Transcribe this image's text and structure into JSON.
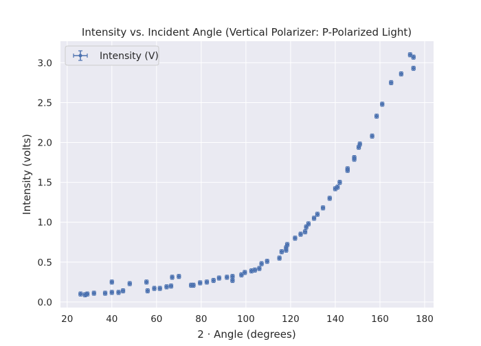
{
  "chart_data": {
    "type": "scatter",
    "title": "Intensity vs. Incident Angle (Vertical Polarizer: P-Polarized Light)",
    "xlabel": "2 · Angle (degrees)",
    "ylabel": "Intensity (volts)",
    "xlim": [
      17,
      184
    ],
    "ylim": [
      -0.07,
      3.27
    ],
    "xticks": [
      20,
      40,
      60,
      80,
      100,
      120,
      140,
      160,
      180
    ],
    "yticks": [
      0.0,
      0.5,
      1.0,
      1.5,
      2.0,
      2.5,
      3.0
    ],
    "xtick_labels": [
      "20",
      "40",
      "60",
      "80",
      "100",
      "120",
      "140",
      "160",
      "180"
    ],
    "ytick_labels": [
      "0.0",
      "0.5",
      "1.0",
      "1.5",
      "2.0",
      "2.5",
      "3.0"
    ],
    "grid": true,
    "legend_position": "top-left",
    "colors": {
      "background": "#eaeaf2",
      "grid": "#ffffff",
      "series": "#4c72b0",
      "text": "#262626"
    },
    "series": [
      {
        "name": "Intensity (V)",
        "marker": "errorbar",
        "x_error": 0.5,
        "y_error": 0.02,
        "points": [
          [
            26,
            0.1
          ],
          [
            28,
            0.09
          ],
          [
            29,
            0.1
          ],
          [
            32,
            0.11
          ],
          [
            37,
            0.11
          ],
          [
            40,
            0.12
          ],
          [
            40,
            0.25
          ],
          [
            43,
            0.12
          ],
          [
            45,
            0.14
          ],
          [
            48,
            0.23
          ],
          [
            55.5,
            0.25
          ],
          [
            56,
            0.14
          ],
          [
            59,
            0.17
          ],
          [
            61.5,
            0.17
          ],
          [
            64.5,
            0.19
          ],
          [
            66.5,
            0.2
          ],
          [
            67,
            0.31
          ],
          [
            70,
            0.32
          ],
          [
            75.5,
            0.21
          ],
          [
            76.5,
            0.21
          ],
          [
            79.5,
            0.24
          ],
          [
            82.5,
            0.25
          ],
          [
            85.5,
            0.27
          ],
          [
            88,
            0.3
          ],
          [
            91.5,
            0.31
          ],
          [
            94,
            0.27
          ],
          [
            94,
            0.32
          ],
          [
            98,
            0.34
          ],
          [
            99.5,
            0.37
          ],
          [
            102.5,
            0.39
          ],
          [
            104,
            0.4
          ],
          [
            106,
            0.42
          ],
          [
            107,
            0.48
          ],
          [
            109.5,
            0.51
          ],
          [
            115,
            0.55
          ],
          [
            116,
            0.63
          ],
          [
            118,
            0.65
          ],
          [
            118,
            0.68
          ],
          [
            118.5,
            0.72
          ],
          [
            122,
            0.8
          ],
          [
            124.5,
            0.85
          ],
          [
            126.5,
            0.88
          ],
          [
            127,
            0.94
          ],
          [
            128,
            0.98
          ],
          [
            130.5,
            1.05
          ],
          [
            132,
            1.1
          ],
          [
            134.5,
            1.18
          ],
          [
            137.5,
            1.3
          ],
          [
            140,
            1.42
          ],
          [
            141,
            1.44
          ],
          [
            142,
            1.5
          ],
          [
            145.5,
            1.65
          ],
          [
            145.5,
            1.67
          ],
          [
            148.5,
            1.79
          ],
          [
            148.5,
            1.81
          ],
          [
            150.5,
            1.94
          ],
          [
            151,
            1.98
          ],
          [
            156.5,
            2.08
          ],
          [
            158.5,
            2.33
          ],
          [
            161,
            2.48
          ],
          [
            165,
            2.75
          ],
          [
            169.5,
            2.86
          ],
          [
            173.5,
            3.1
          ],
          [
            175,
            3.07
          ],
          [
            175,
            2.93
          ]
        ]
      }
    ]
  }
}
